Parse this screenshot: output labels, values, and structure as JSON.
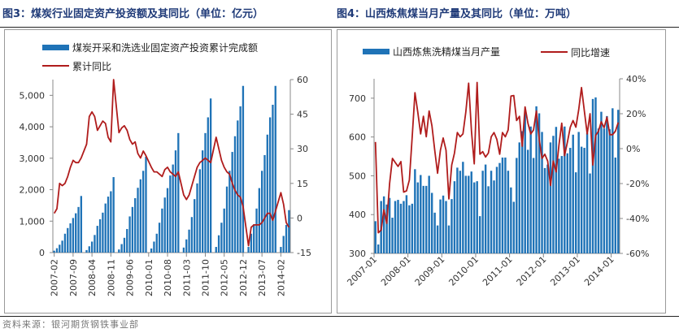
{
  "footer": "资料来源：银河期货钢铁事业部",
  "colors": {
    "bar": "#1f73b7",
    "line": "#b01c1c",
    "title": "#1f3a78"
  },
  "chart_data": [
    {
      "type": "bar+line",
      "title": "图3：煤炭行业固定资产投资额及其同比（单位：亿元）",
      "legend": [
        "煤炭开采和洗选业固定资产投资累计完成额",
        "累计同比"
      ],
      "legend_position": "top-left",
      "start_month": "2007-02",
      "x_tick_labels": [
        "2007-02",
        "2007-09",
        "2008-04",
        "2008-11",
        "2009-06",
        "2010-01",
        "2010-08",
        "2011-03",
        "2011-10",
        "2012-05",
        "2012-12",
        "2013-07",
        "2014-02"
      ],
      "y_left": {
        "ylim": [
          0,
          5500
        ],
        "ticks": [
          "0",
          "1,000",
          "2,000",
          "3,000",
          "4,000",
          "5,000"
        ],
        "tick_values": [
          0,
          1000,
          2000,
          3000,
          4000,
          5000
        ]
      },
      "y_right": {
        "ylim": [
          -15,
          60
        ],
        "ticks": [
          "-15",
          "0",
          "15",
          "30",
          "45",
          "60"
        ],
        "tick_values": [
          -15,
          0,
          15,
          30,
          45,
          60
        ]
      },
      "series": [
        {
          "name": "煤炭开采和洗选业固定资产投资累计完成额",
          "type": "bar",
          "values": [
            60,
            140,
            250,
            380,
            600,
            780,
            930,
            1100,
            1250,
            1450,
            1800,
            null,
            80,
            200,
            350,
            560,
            850,
            1060,
            1270,
            1560,
            1780,
            1950,
            2400,
            null,
            100,
            270,
            470,
            750,
            1150,
            1450,
            1730,
            2060,
            2330,
            2600,
            3050,
            null,
            130,
            350,
            600,
            950,
            1400,
            1750,
            2050,
            2450,
            2800,
            3250,
            3800,
            null,
            160,
            420,
            730,
            1130,
            1700,
            2200,
            2650,
            3250,
            3800,
            4300,
            4900,
            null,
            180,
            550,
            950,
            1400,
            2100,
            2600,
            3200,
            3700,
            4200,
            4650,
            5300,
            null,
            180,
            600,
            900,
            1400,
            2050,
            2600,
            3100,
            3750,
            4300,
            4700,
            5300,
            null,
            180,
            530,
            880,
            1350
          ]
        },
        {
          "name": "累计同比",
          "type": "line",
          "values": [
            2,
            4,
            15,
            14,
            15,
            18,
            22,
            25,
            24,
            24,
            26,
            null,
            32,
            44,
            46,
            44,
            38,
            40,
            42,
            41,
            35,
            33,
            60,
            null,
            37,
            39,
            40,
            38,
            34,
            32,
            33,
            28,
            26,
            29,
            27,
            null,
            22,
            20,
            20,
            19,
            18,
            21,
            22,
            20,
            19,
            18,
            20,
            null,
            10,
            8,
            10,
            14,
            18,
            22,
            24,
            25,
            26,
            25,
            24,
            null,
            35,
            30,
            25,
            22,
            20,
            19,
            15,
            12,
            10,
            9,
            5,
            null,
            -12,
            -4,
            -3,
            -3,
            -3,
            -2,
            0,
            2,
            2,
            -1,
            3,
            null,
            11,
            6,
            -2,
            -4
          ]
        }
      ]
    },
    {
      "type": "bar+line",
      "title": "图4：山西炼焦煤当月产量及其同比（单位：万吨）",
      "legend": [
        "山西炼焦洗精煤当月产量",
        "同比增速"
      ],
      "legend_position": "top",
      "start_month": "2007-01",
      "x_tick_labels": [
        "2007-01",
        "2008-01",
        "2009-01",
        "2010-01",
        "2011-01",
        "2012-01",
        "2013-01",
        "2014-01"
      ],
      "y_left": {
        "ylim": [
          300,
          750
        ],
        "ticks": [
          "300",
          "400",
          "500",
          "600",
          "700"
        ],
        "tick_values": [
          300,
          400,
          500,
          600,
          700
        ]
      },
      "y_right": {
        "ylim": [
          -60,
          40
        ],
        "ticks": [
          "-60%",
          "-40%",
          "-20%",
          "0%",
          "20%",
          "40%"
        ],
        "tick_values": [
          -60,
          -40,
          -20,
          0,
          20,
          40
        ]
      },
      "series": [
        {
          "name": "山西炼焦洗精煤当月产量",
          "type": "bar",
          "values": [
            383,
            323,
            435,
            447,
            426,
            443,
            392,
            435,
            438,
            428,
            435,
            450,
            424,
            428,
            517,
            483,
            502,
            474,
            474,
            500,
            456,
            405,
            372,
            439,
            449,
            435,
            372,
            440,
            486,
            521,
            513,
            536,
            500,
            500,
            511,
            483,
            486,
            396,
            513,
            529,
            473,
            513,
            488,
            523,
            533,
            547,
            547,
            513,
            470,
            433,
            546,
            586,
            615,
            667,
            567,
            627,
            546,
            679,
            661,
            613,
            520,
            529,
            586,
            603,
            626,
            544,
            551,
            627,
            558,
            572,
            606,
            509,
            613,
            575,
            572,
            610,
            506,
            698,
            702,
            622,
            665,
            622,
            654,
            620,
            674,
            547,
            670
          ]
        },
        {
          "name": "同比增速",
          "type": "line",
          "values": [
            3.8,
            -48.2,
            -46.6,
            -35,
            -42.8,
            -20,
            -5.6,
            -7.9,
            -10.2,
            -7.4,
            -24.9,
            -24.2,
            -18,
            6.8,
            32,
            20.8,
            8.4,
            18.5,
            6.8,
            21.6,
            13,
            -0.9,
            -14.1,
            -0.9,
            6.1,
            -0.9,
            -28.8,
            -9.4,
            -2.5,
            9.2,
            6.8,
            8.4,
            20.8,
            37.5,
            10,
            -8.7,
            37.9,
            -3.2,
            -1.7,
            -4.8,
            -2.5,
            6.8,
            9.2,
            5.3,
            -3.2,
            9.2,
            6.8,
            10.7,
            30.1,
            30.4,
            16.1,
            18.5,
            1.4,
            23.9,
            14.6,
            8.4,
            10.7,
            21.6,
            5.3,
            -5.6,
            -3.2,
            -7.1,
            -21.1,
            -7.1,
            -13.3,
            2.2,
            14.6,
            -4,
            3.8,
            12.3,
            16.1,
            12.3,
            22.4,
            35,
            21.6,
            8.4,
            20,
            -9.4,
            7.6,
            10,
            15.4,
            12,
            18,
            8,
            8,
            10,
            15
          ]
        }
      ]
    }
  ]
}
